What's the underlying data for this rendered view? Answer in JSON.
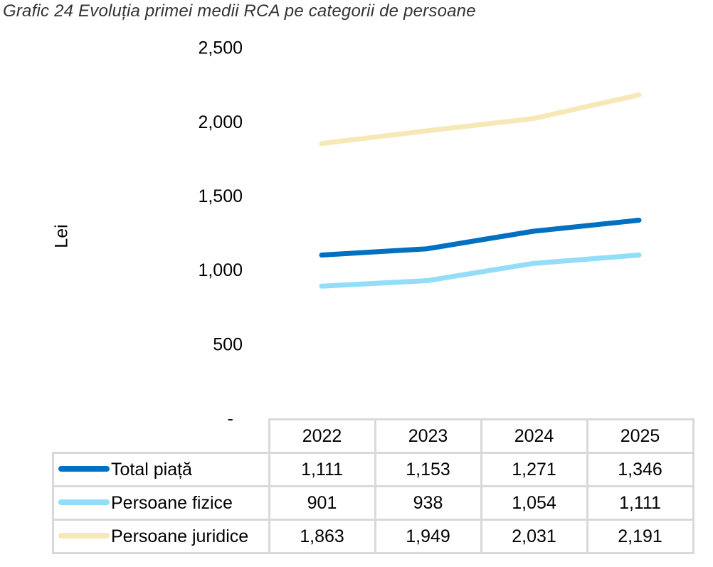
{
  "title": "Grafic 24 Evoluția primei medii RCA pe categorii de persoane",
  "chart_data": {
    "type": "line",
    "title": "Grafic 24 Evoluția primei medii RCA pe categorii de persoane",
    "xlabel": "",
    "ylabel": "Lei",
    "ylim": [
      0,
      2500
    ],
    "yticks": [
      0,
      500,
      1000,
      1500,
      2000,
      2500
    ],
    "ytick_labels": [
      "-",
      "500",
      "1,000",
      "1,500",
      "2,000",
      "2,500"
    ],
    "grid": false,
    "legend": "data-table-bottom",
    "categories": [
      "2022",
      "2023",
      "2024",
      "2025"
    ],
    "series": [
      {
        "name": "Total piață",
        "color": "#0070c0",
        "values": [
          1111,
          1153,
          1271,
          1346
        ],
        "labels": [
          "1,111",
          "1,153",
          "1,271",
          "1,346"
        ]
      },
      {
        "name": "Persoane fizice",
        "color": "#93ddf9",
        "values": [
          901,
          938,
          1054,
          1111
        ],
        "labels": [
          "901",
          "938",
          "1,054",
          "1,111"
        ]
      },
      {
        "name": "Persoane juridice",
        "color": "#f6e8b7",
        "values": [
          1863,
          1949,
          2031,
          2191
        ],
        "labels": [
          "1,863",
          "1,949",
          "2,031",
          "2,191"
        ]
      }
    ]
  }
}
